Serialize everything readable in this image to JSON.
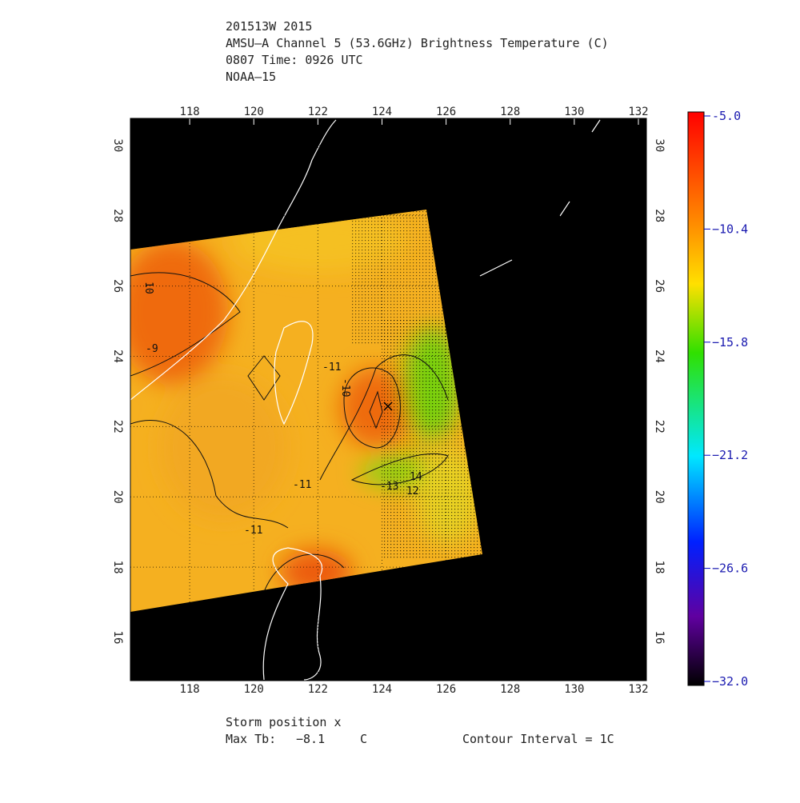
{
  "header": {
    "lines": [
      "201513W 2015",
      "AMSU–A Channel 5 (53.6GHz) Brightness Temperature (C)",
      "0807 Time: 0926 UTC",
      "NOAA–15"
    ]
  },
  "map": {
    "xlim": [
      116.15,
      132.25
    ],
    "ylim": [
      14.77,
      30.77
    ],
    "xticks": [
      118,
      120,
      122,
      124,
      126,
      128,
      130,
      132
    ],
    "yticks": [
      16,
      18,
      20,
      22,
      24,
      26,
      28,
      30
    ],
    "contour_labels": [
      "-9",
      "10",
      "-11",
      "-10",
      "-11",
      "-11",
      "-13",
      "14",
      "12"
    ]
  },
  "colorbar": {
    "lim": [
      -32,
      -5
    ],
    "ticks": [
      {
        "value": -5,
        "label": "-5.0"
      },
      {
        "value": -10.4,
        "label": "−10.4"
      },
      {
        "value": -15.8,
        "label": "−15.8"
      },
      {
        "value": -21.2,
        "label": "−21.2"
      },
      {
        "value": -26.6,
        "label": "−26.6"
      },
      {
        "value": -32,
        "label": "−32.0"
      }
    ]
  },
  "footer": {
    "storm": "Storm position x",
    "max_label": "Max Tb:",
    "max_value": "−8.1",
    "max_unit": "C",
    "interval": "Contour Interval = 1C"
  }
}
